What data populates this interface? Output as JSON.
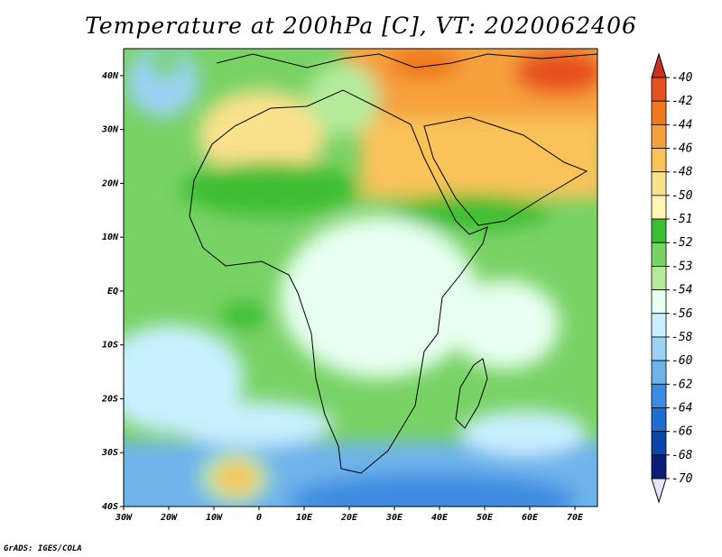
{
  "title": "Temperature at 200hPa [C], VT: 2020062406",
  "footer": "GrADS: IGES/COLA",
  "map": {
    "region": "Africa",
    "lon_range": [
      -30,
      75
    ],
    "lat_range": [
      -40,
      45
    ],
    "x_ticks": [
      "30W",
      "20W",
      "10W",
      "0",
      "10E",
      "20E",
      "30E",
      "40E",
      "50E",
      "60E",
      "70E"
    ],
    "y_ticks": [
      "40N",
      "30N",
      "20N",
      "10N",
      "EQ",
      "10S",
      "20S",
      "30S",
      "40S"
    ]
  },
  "colorbar": {
    "labels": [
      "-40",
      "-42",
      "-44",
      "-46",
      "-48",
      "-50",
      "-51",
      "-52",
      "-53",
      "-54",
      "-56",
      "-58",
      "-60",
      "-62",
      "-64",
      "-66",
      "-68",
      "-70"
    ],
    "colors": [
      "#c8321e",
      "#e6501e",
      "#f0781e",
      "#f5a03c",
      "#fac35a",
      "#fae18c",
      "#fff5b4",
      "#3cbe32",
      "#78d264",
      "#b4eb9b",
      "#e6fff0",
      "#c8f0ff",
      "#9bd2f5",
      "#6eb4eb",
      "#3c8ce1",
      "#1e6ed2",
      "#0a46aa",
      "#0a1e78",
      "#e6e6ff"
    ]
  }
}
